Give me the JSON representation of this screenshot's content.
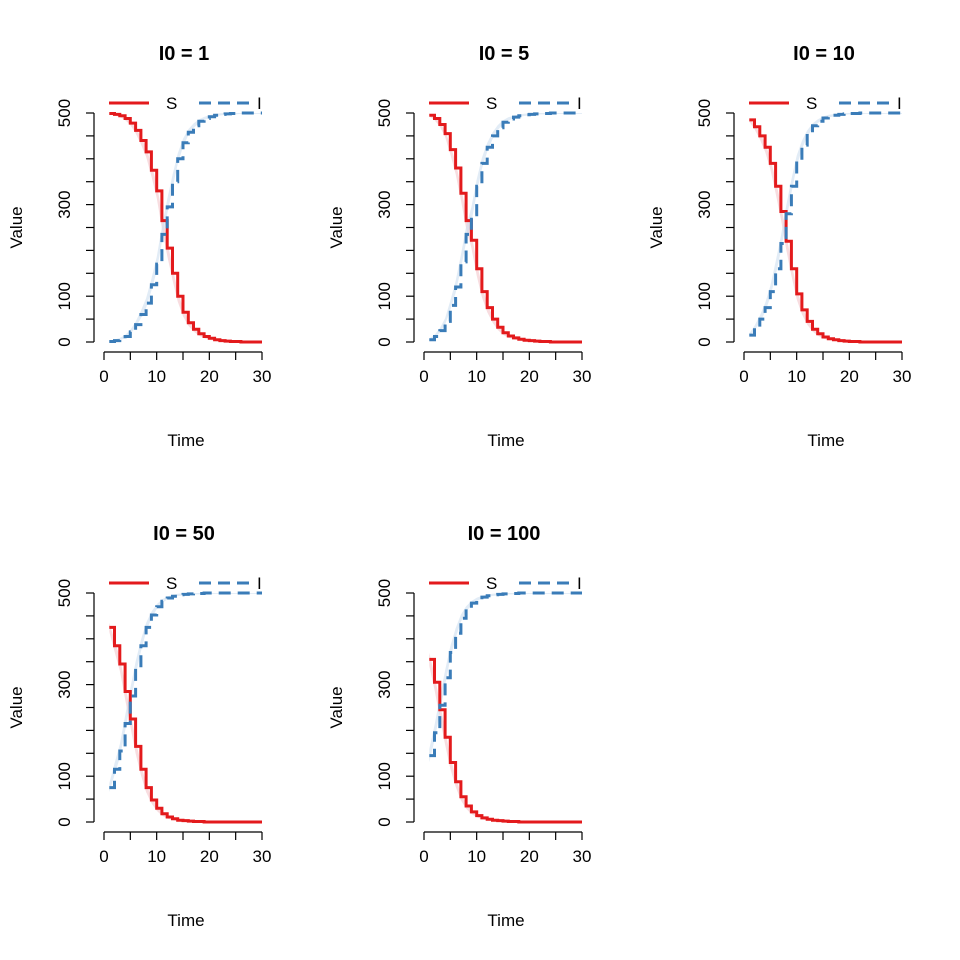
{
  "colors": {
    "S": "#e31a1c",
    "I": "#3a7cb8",
    "band": "#f4c6cc",
    "band_I": "#cfe0f0"
  },
  "chart_data": [
    {
      "type": "line",
      "title": "I0 = 1",
      "xlabel": "Time",
      "ylabel": "Value",
      "xlim": [
        0,
        30
      ],
      "ylim": [
        0,
        500
      ],
      "xticks": [
        "0",
        "10",
        "20",
        "30"
      ],
      "yticks": [
        "0",
        "100",
        "300",
        "500"
      ],
      "x": [
        1,
        2,
        3,
        4,
        5,
        6,
        7,
        8,
        9,
        10,
        11,
        12,
        13,
        14,
        15,
        16,
        17,
        18,
        19,
        20,
        21,
        22,
        23,
        24,
        25,
        26,
        27,
        28,
        29,
        30
      ],
      "series": [
        {
          "name": "S",
          "style": "solid",
          "values": [
            499,
            497,
            494,
            488,
            478,
            462,
            440,
            415,
            375,
            330,
            265,
            205,
            150,
            100,
            65,
            42,
            28,
            18,
            12,
            8,
            5,
            3,
            2,
            1,
            1,
            0,
            0,
            0,
            0,
            0
          ]
        },
        {
          "name": "I",
          "style": "dashed",
          "values": [
            1,
            3,
            6,
            12,
            22,
            38,
            60,
            85,
            125,
            170,
            235,
            295,
            350,
            400,
            435,
            458,
            472,
            482,
            488,
            492,
            495,
            497,
            498,
            499,
            499,
            500,
            500,
            500,
            500,
            500
          ]
        }
      ],
      "legend": {
        "position": "top",
        "entries": [
          "S",
          "I"
        ]
      }
    },
    {
      "type": "line",
      "title": "I0 = 5",
      "xlabel": "Time",
      "ylabel": "Value",
      "xlim": [
        0,
        30
      ],
      "ylim": [
        0,
        500
      ],
      "xticks": [
        "0",
        "10",
        "20",
        "30"
      ],
      "yticks": [
        "0",
        "100",
        "300",
        "500"
      ],
      "x": [
        1,
        2,
        3,
        4,
        5,
        6,
        7,
        8,
        9,
        10,
        11,
        12,
        13,
        14,
        15,
        16,
        17,
        18,
        19,
        20,
        21,
        22,
        23,
        24,
        25,
        26,
        27,
        28,
        29,
        30
      ],
      "series": [
        {
          "name": "S",
          "style": "solid",
          "values": [
            495,
            488,
            475,
            455,
            420,
            380,
            325,
            265,
            222,
            160,
            110,
            75,
            50,
            32,
            20,
            13,
            9,
            6,
            4,
            3,
            2,
            1,
            1,
            0,
            0,
            0,
            0,
            0,
            0,
            0
          ]
        },
        {
          "name": "I",
          "style": "dashed",
          "values": [
            5,
            12,
            25,
            45,
            80,
            120,
            175,
            235,
            278,
            340,
            390,
            425,
            450,
            468,
            480,
            487,
            491,
            494,
            496,
            497,
            498,
            499,
            499,
            500,
            500,
            500,
            500,
            500,
            500,
            500
          ]
        }
      ],
      "legend": {
        "position": "top",
        "entries": [
          "S",
          "I"
        ]
      }
    },
    {
      "type": "line",
      "title": "I0 = 10",
      "xlabel": "Time",
      "ylabel": "Value",
      "xlim": [
        0,
        30
      ],
      "ylim": [
        0,
        500
      ],
      "xticks": [
        "0",
        "10",
        "20",
        "30"
      ],
      "yticks": [
        "0",
        "100",
        "300",
        "500"
      ],
      "x": [
        1,
        2,
        3,
        4,
        5,
        6,
        7,
        8,
        9,
        10,
        11,
        12,
        13,
        14,
        15,
        16,
        17,
        18,
        19,
        20,
        21,
        22,
        23,
        24,
        25,
        26,
        27,
        28,
        29,
        30
      ],
      "series": [
        {
          "name": "S",
          "style": "solid",
          "values": [
            485,
            470,
            450,
            425,
            390,
            340,
            285,
            220,
            160,
            105,
            70,
            45,
            28,
            18,
            11,
            7,
            5,
            3,
            2,
            1,
            1,
            0,
            0,
            0,
            0,
            0,
            0,
            0,
            0,
            0
          ]
        },
        {
          "name": "I",
          "style": "dashed",
          "values": [
            15,
            30,
            50,
            75,
            110,
            160,
            215,
            280,
            340,
            395,
            430,
            455,
            472,
            482,
            489,
            493,
            495,
            497,
            498,
            499,
            499,
            500,
            500,
            500,
            500,
            500,
            500,
            500,
            500,
            500
          ]
        }
      ],
      "legend": {
        "position": "top",
        "entries": [
          "S",
          "I"
        ]
      }
    },
    {
      "type": "line",
      "title": "I0 = 50",
      "xlabel": "Time",
      "ylabel": "Value",
      "xlim": [
        0,
        30
      ],
      "ylim": [
        0,
        500
      ],
      "xticks": [
        "0",
        "10",
        "20",
        "30"
      ],
      "yticks": [
        "0",
        "100",
        "300",
        "500"
      ],
      "x": [
        1,
        2,
        3,
        4,
        5,
        6,
        7,
        8,
        9,
        10,
        11,
        12,
        13,
        14,
        15,
        16,
        17,
        18,
        19,
        20,
        21,
        22,
        23,
        24,
        25,
        26,
        27,
        28,
        29,
        30
      ],
      "series": [
        {
          "name": "S",
          "style": "solid",
          "values": [
            425,
            385,
            345,
            285,
            225,
            165,
            115,
            75,
            48,
            30,
            18,
            11,
            7,
            4,
            3,
            2,
            1,
            1,
            0,
            0,
            0,
            0,
            0,
            0,
            0,
            0,
            0,
            0,
            0,
            0
          ]
        },
        {
          "name": "I",
          "style": "dashed",
          "values": [
            75,
            115,
            155,
            215,
            275,
            335,
            385,
            425,
            452,
            470,
            482,
            489,
            493,
            496,
            497,
            498,
            499,
            499,
            500,
            500,
            500,
            500,
            500,
            500,
            500,
            500,
            500,
            500,
            500,
            500
          ]
        }
      ],
      "legend": {
        "position": "top",
        "entries": [
          "S",
          "I"
        ]
      }
    },
    {
      "type": "line",
      "title": "I0 = 100",
      "xlabel": "Time",
      "ylabel": "Value",
      "xlim": [
        0,
        30
      ],
      "ylim": [
        0,
        500
      ],
      "xticks": [
        "0",
        "10",
        "20",
        "30"
      ],
      "yticks": [
        "0",
        "100",
        "300",
        "500"
      ],
      "x": [
        1,
        2,
        3,
        4,
        5,
        6,
        7,
        8,
        9,
        10,
        11,
        12,
        13,
        14,
        15,
        16,
        17,
        18,
        19,
        20,
        21,
        22,
        23,
        24,
        25,
        26,
        27,
        28,
        29,
        30
      ],
      "series": [
        {
          "name": "S",
          "style": "solid",
          "values": [
            355,
            305,
            245,
            185,
            130,
            88,
            55,
            35,
            22,
            14,
            9,
            6,
            4,
            3,
            2,
            1,
            1,
            0,
            0,
            0,
            0,
            0,
            0,
            0,
            0,
            0,
            0,
            0,
            0,
            0
          ]
        },
        {
          "name": "I",
          "style": "dashed",
          "values": [
            145,
            195,
            255,
            315,
            370,
            412,
            445,
            465,
            478,
            486,
            491,
            494,
            496,
            497,
            498,
            499,
            499,
            500,
            500,
            500,
            500,
            500,
            500,
            500,
            500,
            500,
            500,
            500,
            500,
            500
          ]
        }
      ],
      "legend": {
        "position": "top",
        "entries": [
          "S",
          "I"
        ]
      }
    }
  ]
}
